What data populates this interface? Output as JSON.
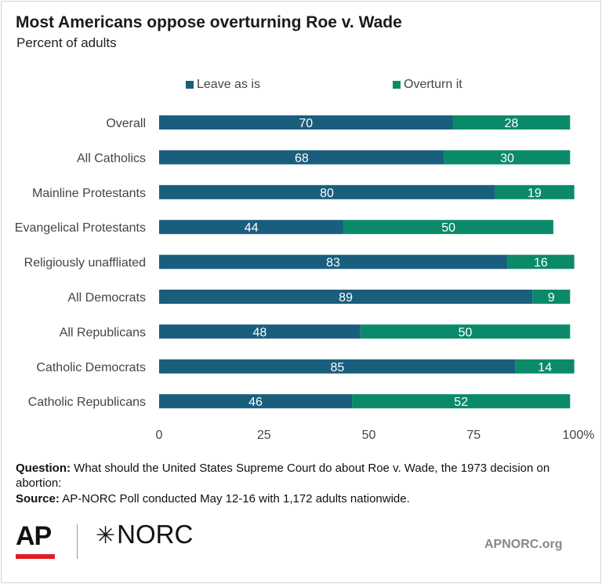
{
  "header": {
    "title": "Most Americans oppose overturning Roe v. Wade",
    "subtitle": "Percent of adults"
  },
  "colors": {
    "leave": "#1a5e7d",
    "overturn": "#0b8a6a",
    "axis_text": "#444444",
    "gridline": "#c8c8c8",
    "ap_red": "#e31b23"
  },
  "chart_data": {
    "type": "bar",
    "orientation": "horizontal",
    "stacked": true,
    "categories": [
      "Overall",
      "All Catholics",
      "Mainline Protestants",
      "Evangelical Protestants",
      "Religiously unaffliated",
      "All Democrats",
      "All Republicans",
      "Catholic Democrats",
      "Catholic Republicans"
    ],
    "series": [
      {
        "name": "Leave as is",
        "values": [
          70,
          68,
          80,
          44,
          83,
          89,
          48,
          85,
          46
        ]
      },
      {
        "name": "Overturn it",
        "values": [
          28,
          30,
          19,
          50,
          16,
          9,
          50,
          14,
          52
        ]
      }
    ],
    "xlim": [
      0,
      100
    ],
    "xticks": [
      "0",
      "25",
      "50",
      "75",
      "100%"
    ],
    "xtick_values": [
      0,
      25,
      50,
      75,
      100
    ],
    "legend_position": "top",
    "grid": false
  },
  "notes": {
    "question_label": "Question:",
    "question_text": " What should the United States Supreme Court do about Roe v. Wade, the 1973 decision on abortion:",
    "source_label": "Source:",
    "source_text": " AP-NORC Poll conducted May 12-16 with 1,172 adults nationwide."
  },
  "footer": {
    "ap_logo": "AP",
    "norc_logo": "NORC",
    "norc_star": "✳",
    "site": "APNORC.org"
  }
}
